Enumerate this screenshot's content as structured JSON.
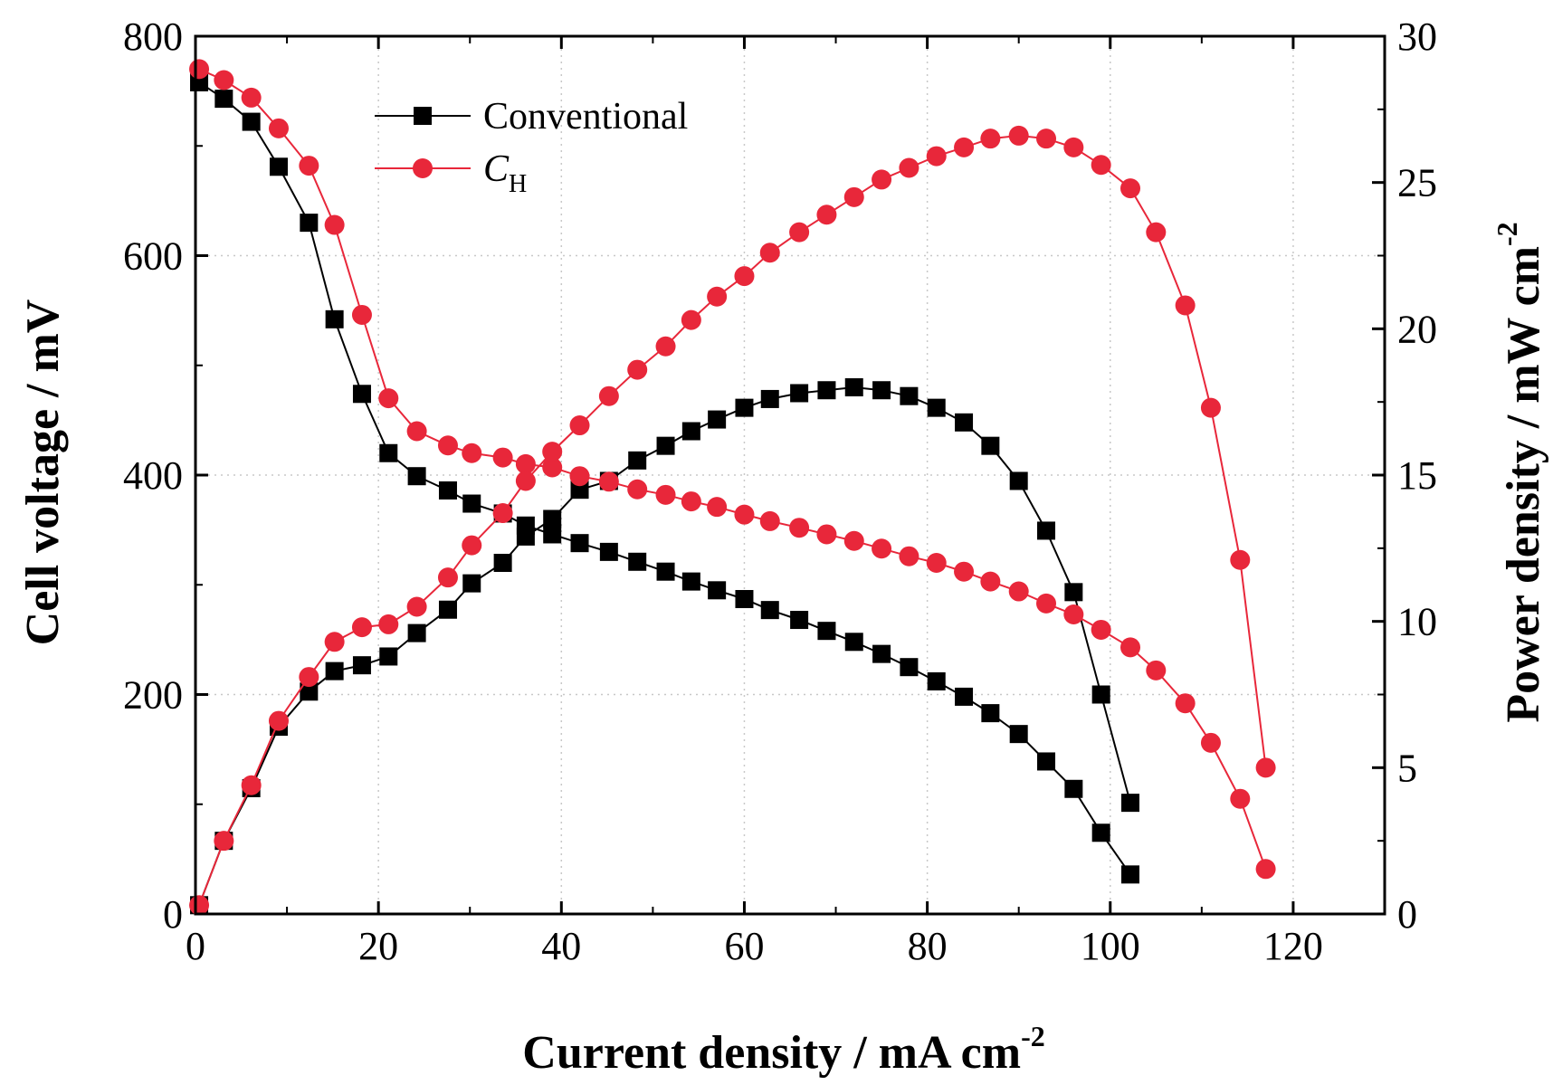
{
  "chart_data": {
    "type": "line",
    "xlabel": "Current density / mA cm",
    "xlabel_sup": "-2",
    "ylabel_left": "Cell voltage / mV",
    "ylabel_right": "Power density / mW cm",
    "ylabel_right_sup": "-2",
    "xlim": [
      0,
      130
    ],
    "ylim_left": [
      0,
      800
    ],
    "ylim_right": [
      0,
      30
    ],
    "x_ticks": [
      0,
      20,
      40,
      60,
      80,
      100,
      120
    ],
    "y_left_ticks": [
      0,
      200,
      400,
      600,
      800
    ],
    "y_right_ticks": [
      0,
      5,
      10,
      15,
      20,
      25,
      30
    ],
    "grid": true,
    "legend_position": "top-left",
    "series": [
      {
        "name": "Conventional",
        "color": "#000000",
        "marker": "square",
        "voltage": {
          "x": [
            0.4,
            3.1,
            6.1,
            9.1,
            12.4,
            15.2,
            18.2,
            21.1,
            24.2,
            27.6,
            30.2,
            33.6,
            36.1,
            39.0,
            42.0,
            45.2,
            48.3,
            51.4,
            54.2,
            57.0,
            60.0,
            62.8,
            66.0,
            69.0,
            72.0,
            75.0,
            78.0,
            81.0,
            84.0,
            86.9,
            90.0,
            93.0,
            96.0,
            99.0,
            102.2
          ],
          "y": [
            758,
            743,
            722,
            681,
            630,
            542,
            474,
            420,
            399,
            386,
            374,
            365,
            354,
            346,
            338,
            330,
            321,
            312,
            303,
            295,
            287,
            277,
            268,
            258,
            248,
            237,
            225,
            212,
            198,
            183,
            164,
            139,
            114,
            74,
            36
          ]
        },
        "power": {
          "x": [
            0.4,
            3.1,
            6.1,
            9.1,
            12.4,
            15.2,
            18.2,
            21.1,
            24.2,
            27.6,
            30.2,
            33.6,
            36.1,
            39.0,
            42.0,
            45.2,
            48.3,
            51.4,
            54.2,
            57.0,
            60.0,
            62.8,
            66.0,
            69.0,
            72.0,
            75.0,
            78.0,
            81.0,
            84.0,
            86.9,
            90.0,
            93.0,
            96.0,
            99.0,
            102.2
          ],
          "y": [
            0.3,
            2.5,
            4.3,
            6.4,
            7.6,
            8.3,
            8.5,
            8.8,
            9.6,
            10.4,
            11.3,
            12.0,
            12.9,
            13.5,
            14.5,
            14.8,
            15.5,
            16.0,
            16.5,
            16.9,
            17.3,
            17.6,
            17.8,
            17.9,
            18.0,
            17.9,
            17.7,
            17.3,
            16.8,
            16.0,
            14.8,
            13.1,
            11.0,
            7.5,
            3.8
          ]
        }
      },
      {
        "name": "C",
        "name_sub": "H",
        "color": "#e8273a",
        "marker": "circle",
        "voltage": {
          "x": [
            0.4,
            3.1,
            6.1,
            9.1,
            12.4,
            15.2,
            18.2,
            21.1,
            24.2,
            27.6,
            30.2,
            33.6,
            36.1,
            39.0,
            42.0,
            45.2,
            48.3,
            51.4,
            54.2,
            57.0,
            60.0,
            62.8,
            66.0,
            69.0,
            72.0,
            75.0,
            78.0,
            81.0,
            84.0,
            86.9,
            90.0,
            93.0,
            96.0,
            99.0,
            102.2,
            105.0,
            108.2,
            111.0,
            114.2,
            117.0
          ],
          "y": [
            770,
            760,
            744,
            716,
            682,
            628,
            546,
            470,
            440,
            427,
            420,
            416,
            410,
            407,
            399,
            394,
            387,
            382,
            376,
            371,
            364,
            358,
            352,
            346,
            340,
            333,
            326,
            320,
            312,
            303,
            294,
            283,
            273,
            259,
            243,
            222,
            192,
            156,
            105,
            41
          ]
        },
        "power": {
          "x": [
            0.4,
            3.1,
            6.1,
            9.1,
            12.4,
            15.2,
            18.2,
            21.1,
            24.2,
            27.6,
            30.2,
            33.6,
            36.1,
            39.0,
            42.0,
            45.2,
            48.3,
            51.4,
            54.2,
            57.0,
            60.0,
            62.8,
            66.0,
            69.0,
            72.0,
            75.0,
            78.0,
            81.0,
            84.0,
            86.9,
            90.0,
            93.0,
            96.0,
            99.0,
            102.2,
            105.0,
            108.2,
            111.0,
            114.2,
            117.0
          ],
          "y": [
            0.3,
            2.5,
            4.4,
            6.6,
            8.1,
            9.3,
            9.8,
            9.9,
            10.5,
            11.5,
            12.6,
            13.7,
            14.8,
            15.8,
            16.7,
            17.7,
            18.6,
            19.4,
            20.3,
            21.1,
            21.8,
            22.6,
            23.3,
            23.9,
            24.5,
            25.1,
            25.5,
            25.9,
            26.2,
            26.5,
            26.6,
            26.5,
            26.2,
            25.6,
            24.8,
            23.3,
            20.8,
            17.3,
            12.1,
            5.0
          ]
        }
      }
    ]
  }
}
